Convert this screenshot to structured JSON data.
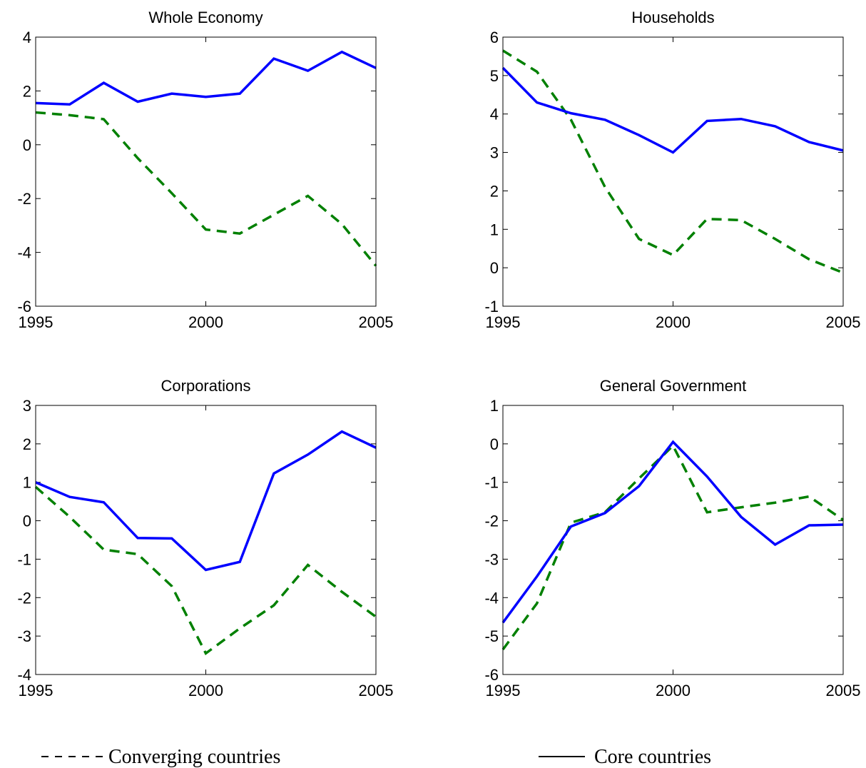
{
  "chart_data": [
    {
      "type": "line",
      "title": "Whole Economy",
      "x": [
        1995,
        1996,
        1997,
        1998,
        1999,
        2000,
        2001,
        2002,
        2003,
        2004,
        2005
      ],
      "xlim": [
        1995,
        2005
      ],
      "xticks": [
        1995,
        2000,
        2005
      ],
      "ylim": [
        -6,
        4
      ],
      "yticks": [
        -6,
        -4,
        -2,
        0,
        2,
        4
      ],
      "series": [
        {
          "color": "#008000",
          "dash": "dashed",
          "values": [
            1.2,
            1.1,
            0.95,
            -0.5,
            -1.8,
            -3.15,
            -3.3,
            -2.6,
            -1.9,
            -2.95,
            -4.5
          ]
        },
        {
          "color": "#0000ff",
          "dash": "solid",
          "values": [
            1.55,
            1.5,
            2.3,
            1.6,
            1.9,
            1.78,
            1.9,
            3.2,
            2.75,
            3.45,
            2.85
          ]
        }
      ]
    },
    {
      "type": "line",
      "title": "Households",
      "x": [
        1995,
        1996,
        1997,
        1998,
        1999,
        2000,
        2001,
        2002,
        2003,
        2004,
        2005
      ],
      "xlim": [
        1995,
        2005
      ],
      "xticks": [
        1995,
        2000,
        2005
      ],
      "ylim": [
        -1,
        6
      ],
      "yticks": [
        -1,
        0,
        1,
        2,
        3,
        4,
        5,
        6
      ],
      "series": [
        {
          "color": "#008000",
          "dash": "dashed",
          "values": [
            5.65,
            5.1,
            3.85,
            2.1,
            0.75,
            0.33,
            1.27,
            1.24,
            0.75,
            0.22,
            -0.13
          ]
        },
        {
          "color": "#0000ff",
          "dash": "solid",
          "values": [
            5.2,
            4.3,
            4.02,
            3.85,
            3.45,
            3.0,
            3.82,
            3.87,
            3.68,
            3.27,
            3.05
          ]
        }
      ]
    },
    {
      "type": "line",
      "title": "Corporations",
      "x": [
        1995,
        1996,
        1997,
        1998,
        1999,
        2000,
        2001,
        2002,
        2003,
        2004,
        2005
      ],
      "xlim": [
        1995,
        2005
      ],
      "xticks": [
        1995,
        2000,
        2005
      ],
      "ylim": [
        -4,
        3
      ],
      "yticks": [
        -4,
        -3,
        -2,
        -1,
        0,
        1,
        2,
        3
      ],
      "series": [
        {
          "color": "#008000",
          "dash": "dashed",
          "values": [
            0.88,
            0.1,
            -0.75,
            -0.87,
            -1.7,
            -3.45,
            -2.8,
            -2.2,
            -1.15,
            -1.85,
            -2.5
          ]
        },
        {
          "color": "#0000ff",
          "dash": "solid",
          "values": [
            1.0,
            0.62,
            0.48,
            -0.45,
            -0.46,
            -1.28,
            -1.07,
            1.23,
            1.72,
            2.32,
            1.9
          ]
        }
      ]
    },
    {
      "type": "line",
      "title": "General Government",
      "x": [
        1995,
        1996,
        1997,
        1998,
        1999,
        2000,
        2001,
        2002,
        2003,
        2004,
        2005
      ],
      "xlim": [
        1995,
        2005
      ],
      "xticks": [
        1995,
        2000,
        2005
      ],
      "ylim": [
        -6,
        1
      ],
      "yticks": [
        -6,
        -5,
        -4,
        -3,
        -2,
        -1,
        0,
        1
      ],
      "series": [
        {
          "color": "#008000",
          "dash": "dashed",
          "values": [
            -5.35,
            -4.15,
            -2.05,
            -1.78,
            -0.9,
            -0.05,
            -1.78,
            -1.65,
            -1.53,
            -1.37,
            -1.98
          ]
        },
        {
          "color": "#0000ff",
          "dash": "solid",
          "values": [
            -4.65,
            -3.45,
            -2.15,
            -1.8,
            -1.1,
            0.05,
            -0.85,
            -1.9,
            -2.62,
            -2.12,
            -2.1
          ]
        }
      ]
    }
  ],
  "legend": [
    {
      "label": "Converging countries",
      "color": "#000000",
      "dash": "dashed"
    },
    {
      "label": "Core countries",
      "color": "#000000",
      "dash": "solid"
    }
  ]
}
